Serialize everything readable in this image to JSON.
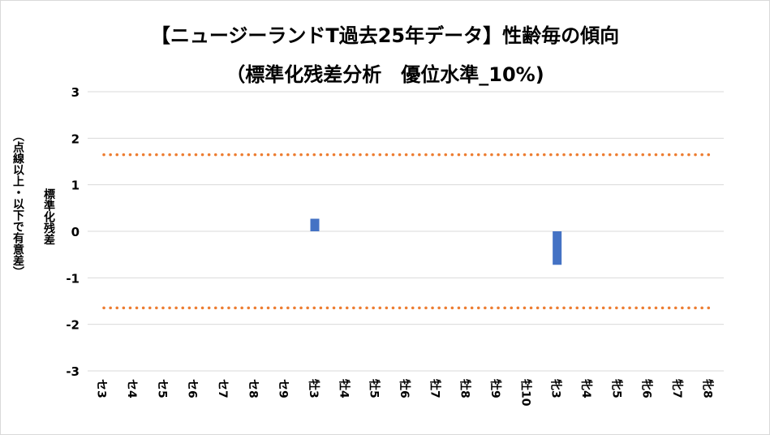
{
  "chart_data": {
    "type": "bar",
    "title": "【ニュージーランドT過去25年データ】性齢毎の傾向",
    "subtitle": "（標準化残差分析　優位水準_10%)",
    "ylabel_line1": "標準化残差",
    "ylabel_line2": "（点線以上・以下で有意差）",
    "xlabel": "",
    "ylim": [
      -3,
      3
    ],
    "yticks": [
      3,
      2,
      1,
      0,
      -1,
      -2,
      -3
    ],
    "categories": [
      "セ3",
      "セ4",
      "セ5",
      "セ6",
      "セ7",
      "セ8",
      "セ9",
      "牡3",
      "牡4",
      "牡5",
      "牡6",
      "牡7",
      "牡8",
      "牡9",
      "牡10",
      "牝3",
      "牝4",
      "牝5",
      "牝6",
      "牝7",
      "牝8"
    ],
    "values": [
      0,
      0,
      0,
      0,
      0,
      0,
      0,
      0.27,
      0,
      0,
      0,
      0,
      0,
      0,
      0,
      -0.72,
      0,
      0,
      0,
      0,
      0
    ],
    "threshold_lines": [
      1.645,
      -1.645
    ],
    "grid": true,
    "colors": {
      "bar": "#4472c4",
      "threshold": "#ed7d31",
      "grid": "#d9d9d9"
    }
  }
}
